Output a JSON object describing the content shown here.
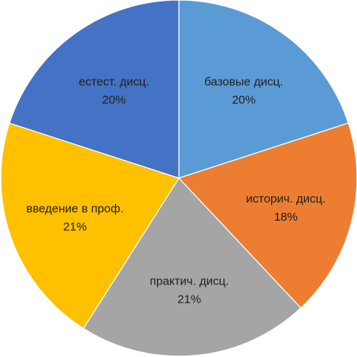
{
  "chart_data": {
    "type": "pie",
    "categories": [
      "базовые дисц.",
      "историч. дисц.",
      "практич. дисц.",
      "введение в проф.",
      "естест. дисц."
    ],
    "values": [
      20,
      18,
      21,
      21,
      20
    ],
    "value_labels": [
      "20%",
      "18%",
      "21%",
      "21%",
      "20%"
    ],
    "colors": [
      "#5b9bd5",
      "#ed7d31",
      "#a5a5a5",
      "#ffc000",
      "#4472c4"
    ],
    "start_angle": "12 o'clock",
    "direction": "clockwise",
    "legend": "none"
  }
}
